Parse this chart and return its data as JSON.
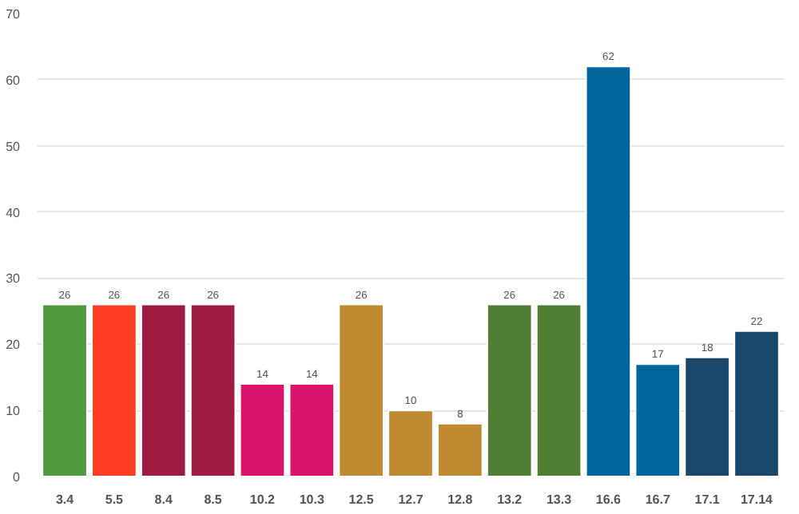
{
  "chart_data": {
    "type": "bar",
    "categories": [
      "3.4",
      "5.5",
      "8.4",
      "8.5",
      "10.2",
      "10.3",
      "12.5",
      "12.7",
      "12.8",
      "13.2",
      "13.3",
      "16.6",
      "16.7",
      "17.1",
      "17.14"
    ],
    "values": [
      26,
      26,
      26,
      26,
      14,
      14,
      26,
      10,
      8,
      26,
      26,
      62,
      17,
      18,
      22
    ],
    "colors": [
      "#4e9a3c",
      "#ff3d24",
      "#9e1a42",
      "#9e1a42",
      "#dc136c",
      "#dc136c",
      "#c08a30",
      "#c08a30",
      "#c08a30",
      "#4f7f34",
      "#4f7f34",
      "#00679e",
      "#00679e",
      "#1b476b",
      "#1b476b"
    ],
    "ylim": [
      0,
      70
    ],
    "yticks": [
      0,
      10,
      20,
      30,
      40,
      50,
      60,
      70
    ],
    "grid": "y",
    "data_labels": true
  }
}
